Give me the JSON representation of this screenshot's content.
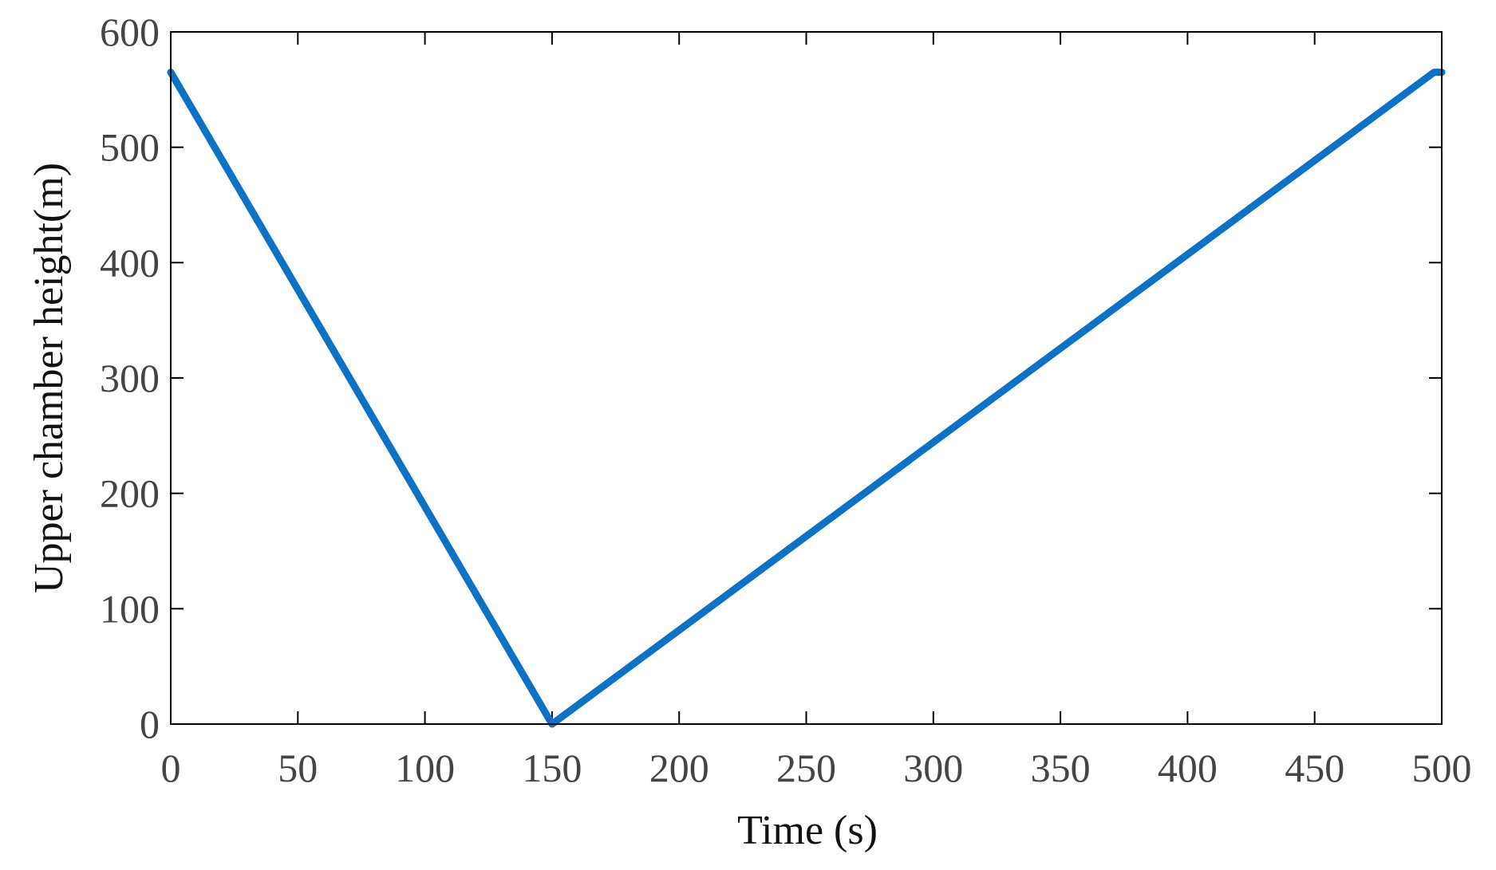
{
  "chart_data": {
    "type": "line",
    "title": "",
    "xlabel": "Time (s)",
    "ylabel": "Upper chamber height(m)",
    "xlim": [
      0,
      500
    ],
    "ylim": [
      0,
      600
    ],
    "xticks": [
      0,
      50,
      100,
      150,
      200,
      250,
      300,
      350,
      400,
      450,
      500
    ],
    "yticks": [
      0,
      100,
      200,
      300,
      400,
      500,
      600
    ],
    "grid": false,
    "legend": "none",
    "series": [
      {
        "color": "#0b72c6",
        "x": [
          0,
          150,
          497,
          500
        ],
        "y": [
          565,
          0,
          565,
          565
        ]
      }
    ]
  }
}
